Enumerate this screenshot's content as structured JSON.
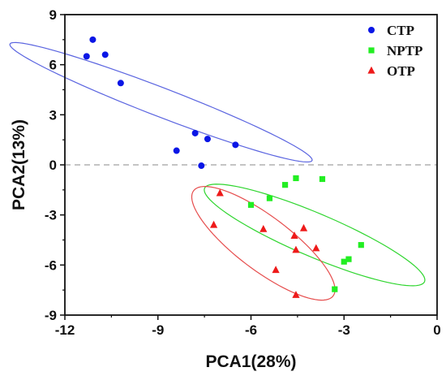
{
  "chart_data": {
    "type": "scatter",
    "xlabel": "PCA1(28%)",
    "ylabel": "PCA2(13%)",
    "xlim": [
      -12,
      0
    ],
    "ylim": [
      -9,
      9
    ],
    "x_ticks": [
      -12,
      -9,
      -6,
      -3,
      0
    ],
    "y_ticks": [
      -9,
      -6,
      -3,
      0,
      3,
      6,
      9
    ],
    "zero_line": {
      "y": 0,
      "style": "dashed",
      "color": "#b0b0b0"
    },
    "legend_position": "top-right",
    "series": [
      {
        "name": "CTP",
        "marker": "circle",
        "color": "#0a16e6",
        "points": [
          {
            "x": -11.3,
            "y": 6.5
          },
          {
            "x": -11.1,
            "y": 7.5
          },
          {
            "x": -10.7,
            "y": 6.6
          },
          {
            "x": -10.2,
            "y": 4.9
          },
          {
            "x": -8.4,
            "y": 0.85
          },
          {
            "x": -7.8,
            "y": 1.9
          },
          {
            "x": -7.6,
            "y": -0.05
          },
          {
            "x": -7.4,
            "y": 1.55
          },
          {
            "x": -6.5,
            "y": 1.2
          }
        ],
        "ellipse": {
          "cx": -8.9,
          "cy": 3.75,
          "rx": 6.0,
          "ry": 0.75,
          "angle_deg": -36,
          "color": "#5a64e0"
        }
      },
      {
        "name": "NPTP",
        "marker": "square",
        "color": "#22ee22",
        "points": [
          {
            "x": -6.0,
            "y": -2.4
          },
          {
            "x": -5.4,
            "y": -2.0
          },
          {
            "x": -4.9,
            "y": -1.2
          },
          {
            "x": -4.55,
            "y": -0.8
          },
          {
            "x": -3.7,
            "y": -0.85
          },
          {
            "x": -3.3,
            "y": -7.45
          },
          {
            "x": -3.0,
            "y": -5.8
          },
          {
            "x": -2.85,
            "y": -5.65
          },
          {
            "x": -2.45,
            "y": -4.8
          }
        ],
        "ellipse": {
          "cx": -3.95,
          "cy": -4.2,
          "rx": 4.55,
          "ry": 1.1,
          "angle_deg": -40,
          "color": "#2ed52e"
        }
      },
      {
        "name": "OTP",
        "marker": "triangle",
        "color": "#ee1a1a",
        "points": [
          {
            "x": -7.0,
            "y": -1.7
          },
          {
            "x": -7.2,
            "y": -3.6
          },
          {
            "x": -5.6,
            "y": -3.85
          },
          {
            "x": -4.6,
            "y": -4.25
          },
          {
            "x": -4.3,
            "y": -3.8
          },
          {
            "x": -3.9,
            "y": -5.0
          },
          {
            "x": -4.55,
            "y": -5.1
          },
          {
            "x": -5.2,
            "y": -6.3
          },
          {
            "x": -4.55,
            "y": -7.8
          }
        ],
        "ellipse": {
          "cx": -5.6,
          "cy": -4.7,
          "rx": 3.95,
          "ry": 1.15,
          "angle_deg": -58,
          "color": "#e64d4d"
        }
      }
    ]
  }
}
